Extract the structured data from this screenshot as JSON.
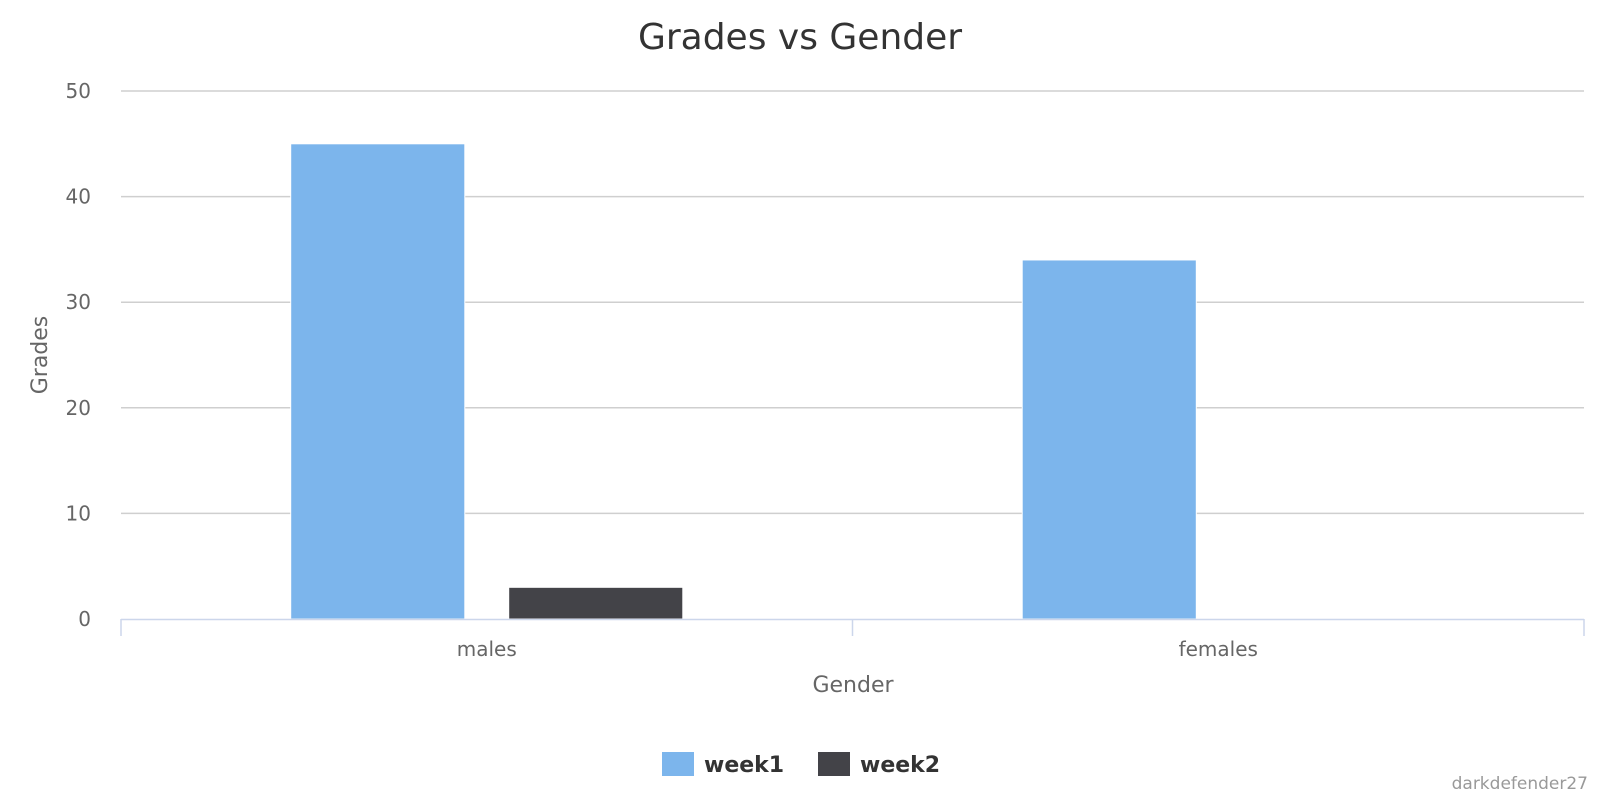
{
  "chart_data": {
    "type": "bar",
    "title": "Grades vs Gender",
    "xlabel": "Gender",
    "ylabel": "Grades",
    "categories": [
      "males",
      "females"
    ],
    "series": [
      {
        "name": "week1",
        "values": [
          45,
          34
        ],
        "color": "#7cb5ec"
      },
      {
        "name": "week2",
        "values": [
          3,
          0
        ],
        "color": "#434348"
      }
    ],
    "ylim": [
      0,
      50
    ],
    "yticks": [
      "0",
      "10",
      "20",
      "30",
      "40",
      "50"
    ],
    "grid": true,
    "legend_position": "bottom-center"
  },
  "credit": "darkdefender27"
}
